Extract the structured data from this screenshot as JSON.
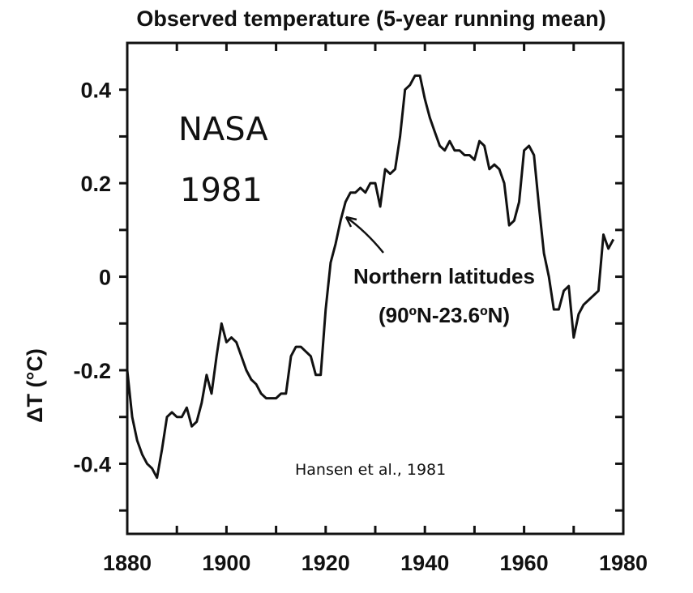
{
  "chart_data": {
    "type": "line",
    "title": "Observed temperature (5-year running mean)",
    "xlabel": "",
    "ylabel": "ΔT (°C)",
    "xlim": [
      1880,
      1980
    ],
    "ylim": [
      -0.55,
      0.5
    ],
    "x_ticks": [
      1880,
      1900,
      1920,
      1940,
      1960,
      1980
    ],
    "y_ticks": [
      0.4,
      0.2,
      0,
      -0.2,
      -0.4
    ],
    "y_tick_labels": [
      "0.4",
      "0.2",
      "0",
      "-0.2",
      "-0.4"
    ],
    "grid": false,
    "series": [
      {
        "name": "Northern latitudes (90ºN-23.6ºN)",
        "color": "#111111",
        "x": [
          1880,
          1881,
          1882,
          1883,
          1884,
          1885,
          1886,
          1887,
          1888,
          1889,
          1890,
          1891,
          1892,
          1893,
          1894,
          1895,
          1896,
          1897,
          1898,
          1899,
          1900,
          1901,
          1902,
          1903,
          1904,
          1905,
          1906,
          1907,
          1908,
          1909,
          1910,
          1911,
          1912,
          1913,
          1914,
          1915,
          1916,
          1917,
          1918,
          1919,
          1920,
          1921,
          1922,
          1923,
          1924,
          1925,
          1926,
          1927,
          1928,
          1929,
          1930,
          1931,
          1932,
          1933,
          1934,
          1935,
          1936,
          1937,
          1938,
          1939,
          1940,
          1941,
          1942,
          1943,
          1944,
          1945,
          1946,
          1947,
          1948,
          1949,
          1950,
          1951,
          1952,
          1953,
          1954,
          1955,
          1956,
          1957,
          1958,
          1959,
          1960,
          1961,
          1962,
          1963,
          1964,
          1965,
          1966,
          1967,
          1968,
          1969,
          1970,
          1971,
          1972,
          1973,
          1974,
          1975,
          1976,
          1977,
          1978
        ],
        "values": [
          -0.2,
          -0.3,
          -0.35,
          -0.38,
          -0.4,
          -0.41,
          -0.43,
          -0.37,
          -0.3,
          -0.29,
          -0.3,
          -0.3,
          -0.28,
          -0.32,
          -0.31,
          -0.27,
          -0.21,
          -0.25,
          -0.17,
          -0.1,
          -0.14,
          -0.13,
          -0.14,
          -0.17,
          -0.2,
          -0.22,
          -0.23,
          -0.25,
          -0.26,
          -0.26,
          -0.26,
          -0.25,
          -0.25,
          -0.17,
          -0.15,
          -0.15,
          -0.16,
          -0.17,
          -0.21,
          -0.21,
          -0.07,
          0.03,
          0.07,
          0.12,
          0.16,
          0.18,
          0.18,
          0.19,
          0.18,
          0.2,
          0.2,
          0.15,
          0.23,
          0.22,
          0.23,
          0.3,
          0.4,
          0.41,
          0.43,
          0.43,
          0.38,
          0.34,
          0.31,
          0.28,
          0.27,
          0.29,
          0.27,
          0.27,
          0.26,
          0.26,
          0.25,
          0.29,
          0.28,
          0.23,
          0.24,
          0.23,
          0.2,
          0.11,
          0.12,
          0.16,
          0.27,
          0.28,
          0.26,
          0.15,
          0.05,
          0.0,
          -0.07,
          -0.07,
          -0.03,
          -0.02,
          -0.13,
          -0.08,
          -0.06,
          -0.05,
          -0.04,
          -0.03,
          0.09,
          0.06,
          0.08
        ]
      }
    ],
    "annotations": {
      "agency": "NASA",
      "year": "1981",
      "series_label_line1": "Northern latitudes",
      "series_label_line2": "(90ºN-23.6ºN)",
      "citation": "Hansen et al., 1981"
    }
  }
}
